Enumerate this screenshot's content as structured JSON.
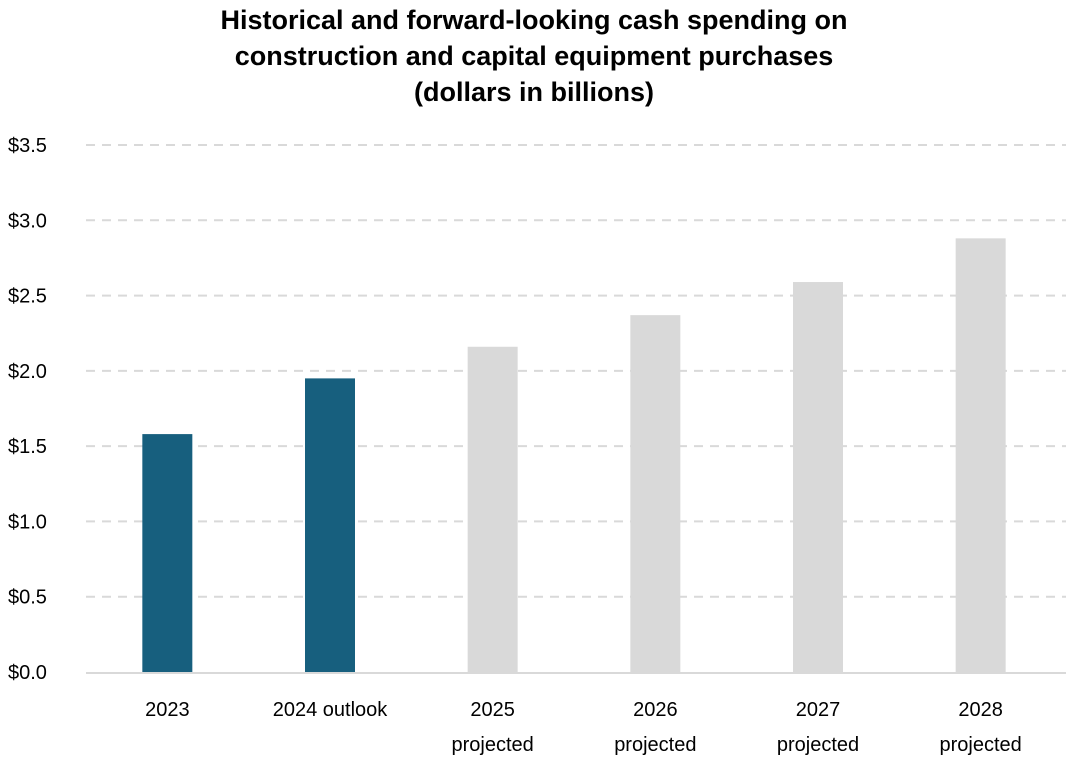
{
  "chart_data": {
    "type": "bar",
    "title_lines": [
      "Historical and forward-looking cash spending on",
      "construction and capital equipment purchases",
      "(dollars in billions)"
    ],
    "categories": [
      [
        "2023"
      ],
      [
        "2024 outlook"
      ],
      [
        "2025",
        "projected"
      ],
      [
        "2026",
        "projected"
      ],
      [
        "2027",
        "projected"
      ],
      [
        "2028",
        "projected"
      ]
    ],
    "values": [
      1.58,
      1.95,
      2.16,
      2.37,
      2.59,
      2.88
    ],
    "colors": [
      "#175f7e",
      "#175f7e",
      "#d9d9d9",
      "#d9d9d9",
      "#d9d9d9",
      "#d9d9d9"
    ],
    "yticks": [
      "$0.0",
      "$0.5",
      "$1.0",
      "$1.5",
      "$2.0",
      "$2.5",
      "$3.0",
      "$3.5"
    ],
    "ylim": [
      0,
      3.5
    ],
    "grid": true,
    "grid_style": "dashed",
    "legend": "none",
    "xlabel": "",
    "ylabel": ""
  }
}
